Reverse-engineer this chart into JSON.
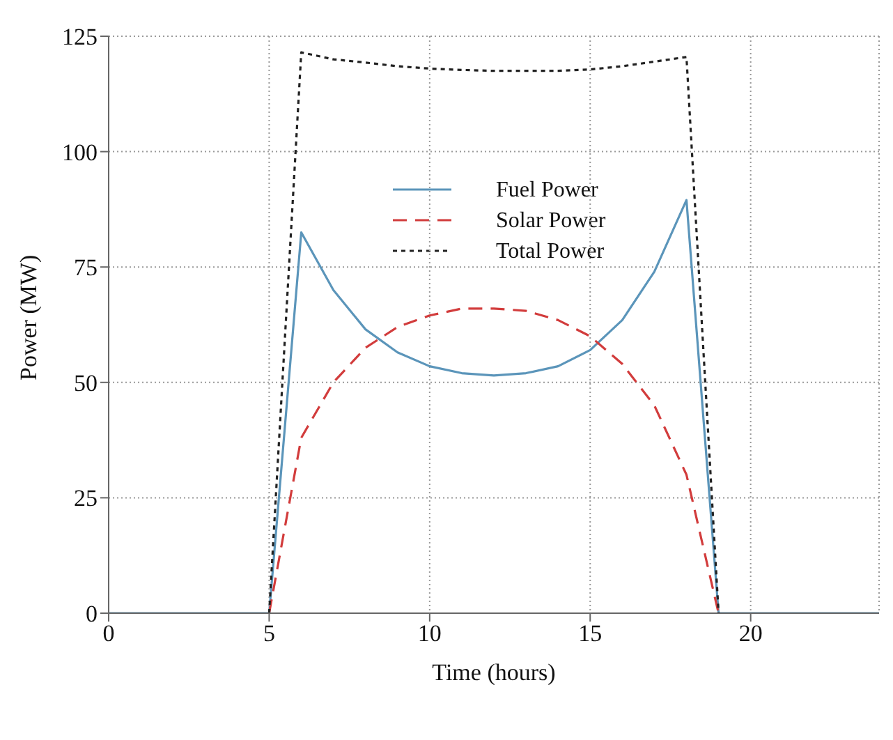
{
  "chart_data": {
    "type": "line",
    "xlabel": "Time (hours)",
    "ylabel": "Power (MW)",
    "x": [
      0,
      1,
      2,
      3,
      4,
      5,
      6,
      7,
      8,
      9,
      10,
      11,
      12,
      13,
      14,
      15,
      16,
      17,
      18,
      19,
      20,
      21,
      22,
      23,
      24
    ],
    "series": [
      {
        "name": "Fuel Power",
        "color": "#5b95ba",
        "line_style": "solid",
        "values": [
          0,
          0,
          0,
          0,
          0,
          0,
          82.5,
          70,
          61.5,
          56.5,
          53.5,
          52,
          51.5,
          52,
          53.5,
          57,
          63.5,
          74,
          89.5,
          0,
          0,
          0,
          0,
          0,
          0
        ]
      },
      {
        "name": "Solar Power",
        "color": "#d23c3c",
        "line_style": "dashed",
        "values": [
          null,
          null,
          null,
          null,
          null,
          0,
          38,
          50,
          57.5,
          62,
          64.5,
          66,
          66,
          65.5,
          63.5,
          60,
          54,
          45,
          30,
          0,
          null,
          null,
          null,
          null,
          null
        ]
      },
      {
        "name": "Total Power",
        "color": "#222222",
        "line_style": "dotted",
        "values": [
          null,
          null,
          null,
          null,
          null,
          0,
          121.5,
          120,
          119.3,
          118.5,
          118,
          117.7,
          117.5,
          117.5,
          117.5,
          117.8,
          118.5,
          119.5,
          120.5,
          0,
          null,
          null,
          null,
          null,
          null
        ]
      }
    ],
    "xlim": [
      0,
      24
    ],
    "xticks": [
      0,
      5,
      10,
      15,
      20
    ],
    "ylim": [
      0,
      125
    ],
    "yticks": [
      0,
      25,
      50,
      75,
      100,
      125
    ],
    "grid": true,
    "legend": "top",
    "marker": "none"
  }
}
